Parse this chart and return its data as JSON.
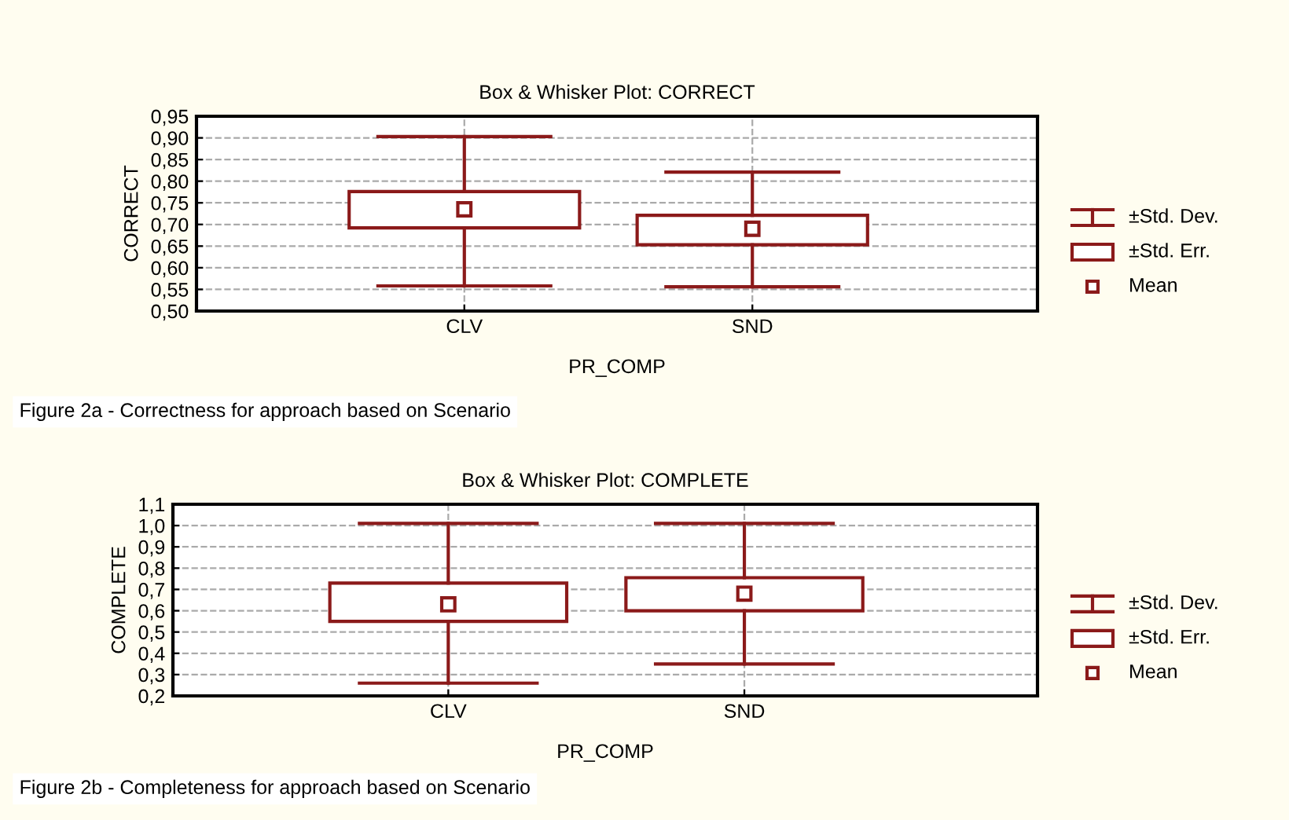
{
  "chart_data": [
    {
      "type": "box",
      "title": "Box & Whisker Plot: CORRECT",
      "xlabel": "PR_COMP",
      "ylabel": "CORRECT",
      "categories": [
        "CLV",
        "SND"
      ],
      "color": "#8b1a1a",
      "boxes": [
        {
          "low": 0.558,
          "q1": 0.692,
          "q3": 0.776,
          "high": 0.903,
          "mean": 0.735
        },
        {
          "low": 0.556,
          "q1": 0.653,
          "q3": 0.721,
          "high": 0.821,
          "mean": 0.69
        }
      ],
      "ylim": [
        0.5,
        0.95
      ],
      "yticks": [
        {
          "value": 0.5,
          "label": "0,50"
        },
        {
          "value": 0.55,
          "label": "0,55"
        },
        {
          "value": 0.6,
          "label": "0,60"
        },
        {
          "value": 0.65,
          "label": "0,65"
        },
        {
          "value": 0.7,
          "label": "0,70"
        },
        {
          "value": 0.75,
          "label": "0,75"
        },
        {
          "value": 0.8,
          "label": "0,80"
        },
        {
          "value": 0.85,
          "label": "0,85"
        },
        {
          "value": 0.9,
          "label": "0,90"
        },
        {
          "value": 0.95,
          "label": "0,95"
        }
      ],
      "grid": true,
      "marker": "square",
      "annotations": [
        "±Std. Dev.",
        "±Std. Err.",
        "Mean",
        "Figure 2a - Correctness for approach based on Scenario"
      ]
    },
    {
      "type": "box",
      "title": "Box & Whisker Plot: COMPLETE",
      "xlabel": "PR_COMP",
      "ylabel": "COMPLETE",
      "categories": [
        "CLV",
        "SND"
      ],
      "color": "#8b1a1a",
      "boxes": [
        {
          "low": 0.26,
          "q1": 0.55,
          "q3": 0.73,
          "high": 1.01,
          "mean": 0.63
        },
        {
          "low": 0.35,
          "q1": 0.6,
          "q3": 0.755,
          "high": 1.01,
          "mean": 0.68
        }
      ],
      "ylim": [
        0.2,
        1.1
      ],
      "yticks": [
        {
          "value": 0.2,
          "label": "0,2"
        },
        {
          "value": 0.3,
          "label": "0,3"
        },
        {
          "value": 0.4,
          "label": "0,4"
        },
        {
          "value": 0.5,
          "label": "0,5"
        },
        {
          "value": 0.6,
          "label": "0,6"
        },
        {
          "value": 0.7,
          "label": "0,7"
        },
        {
          "value": 0.8,
          "label": "0,8"
        },
        {
          "value": 0.9,
          "label": "0,9"
        },
        {
          "value": 1.0,
          "label": "1,0"
        },
        {
          "value": 1.1,
          "label": "1,1"
        }
      ],
      "grid": true,
      "marker": "square",
      "annotations": [
        "±Std. Dev.",
        "±Std. Err.",
        "Mean",
        "Figure 2b - Completeness for approach based on Scenario"
      ]
    }
  ]
}
